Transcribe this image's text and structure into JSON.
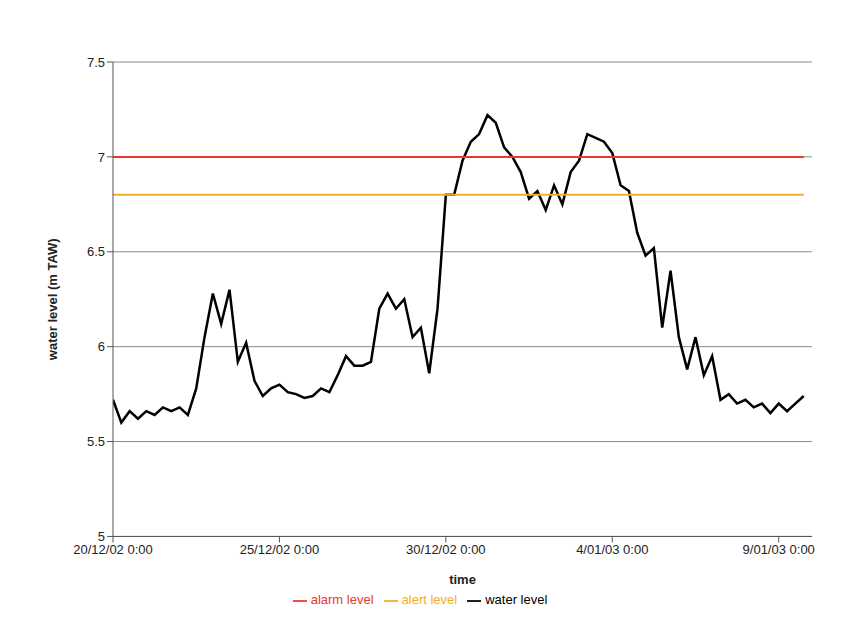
{
  "chart_data": {
    "type": "line",
    "x_label": "time",
    "y_label": "water level (m TAW)",
    "x": [
      0,
      0.25,
      0.5,
      0.75,
      1,
      1.25,
      1.5,
      1.75,
      2,
      2.25,
      2.5,
      2.75,
      3,
      3.25,
      3.5,
      3.75,
      4,
      4.25,
      4.5,
      4.75,
      5,
      5.25,
      5.5,
      5.75,
      6,
      6.25,
      6.5,
      6.75,
      7,
      7.25,
      7.5,
      7.75,
      8,
      8.25,
      8.5,
      8.75,
      9,
      9.25,
      9.5,
      9.75,
      10,
      10.25,
      10.5,
      10.75,
      11,
      11.25,
      11.5,
      11.75,
      12,
      12.25,
      12.5,
      12.75,
      13,
      13.25,
      13.5,
      13.75,
      14,
      14.25,
      14.5,
      14.75,
      15,
      15.25,
      15.5,
      15.75,
      16,
      16.25,
      16.5,
      16.75,
      17,
      17.25,
      17.5,
      17.75,
      18,
      18.25,
      18.5,
      18.75,
      19,
      19.25,
      19.5,
      19.75,
      20,
      20.25,
      20.5,
      20.75
    ],
    "series": [
      {
        "name": "water level",
        "color": "#000000",
        "values": [
          5.72,
          5.6,
          5.66,
          5.62,
          5.66,
          5.64,
          5.68,
          5.66,
          5.68,
          5.64,
          5.78,
          6.05,
          6.28,
          6.12,
          6.3,
          5.92,
          6.02,
          5.82,
          5.74,
          5.78,
          5.8,
          5.76,
          5.75,
          5.73,
          5.74,
          5.78,
          5.76,
          5.85,
          5.95,
          5.9,
          5.9,
          5.92,
          6.2,
          6.28,
          6.2,
          6.25,
          6.05,
          6.1,
          5.86,
          6.2,
          6.8,
          6.8,
          6.98,
          7.08,
          7.12,
          7.22,
          7.18,
          7.05,
          7.0,
          6.92,
          6.78,
          6.82,
          6.72,
          6.85,
          6.75,
          6.92,
          6.98,
          7.12,
          7.1,
          7.08,
          7.02,
          6.85,
          6.82,
          6.6,
          6.48,
          6.52,
          6.1,
          6.4,
          6.05,
          5.88,
          6.05,
          5.85,
          5.95,
          5.72,
          5.75,
          5.7,
          5.72,
          5.68,
          5.7,
          5.65,
          5.7,
          5.66,
          5.7,
          5.74
        ]
      },
      {
        "name": "alert level",
        "color": "#f0b020",
        "values": [
          6.8,
          6.8,
          6.8,
          6.8,
          6.8,
          6.8,
          6.8,
          6.8,
          6.8,
          6.8,
          6.8,
          6.8,
          6.8,
          6.8,
          6.8,
          6.8,
          6.8,
          6.8,
          6.8,
          6.8,
          6.8,
          6.8,
          6.8,
          6.8,
          6.8,
          6.8,
          6.8,
          6.8,
          6.8,
          6.8,
          6.8,
          6.8,
          6.8,
          6.8,
          6.8,
          6.8,
          6.8,
          6.8,
          6.8,
          6.8,
          6.8,
          6.8,
          6.8,
          6.8,
          6.8,
          6.8,
          6.8,
          6.8,
          6.8,
          6.8,
          6.8,
          6.8,
          6.8,
          6.8,
          6.8,
          6.8,
          6.8,
          6.8,
          6.8,
          6.8,
          6.8,
          6.8,
          6.8,
          6.8,
          6.8,
          6.8,
          6.8,
          6.8,
          6.8,
          6.8,
          6.8,
          6.8,
          6.8,
          6.8,
          6.8,
          6.8,
          6.8,
          6.8,
          6.8,
          6.8,
          6.8,
          6.8,
          6.8,
          6.8
        ]
      },
      {
        "name": "alarm level",
        "color": "#e8392a",
        "values": [
          7,
          7,
          7,
          7,
          7,
          7,
          7,
          7,
          7,
          7,
          7,
          7,
          7,
          7,
          7,
          7,
          7,
          7,
          7,
          7,
          7,
          7,
          7,
          7,
          7,
          7,
          7,
          7,
          7,
          7,
          7,
          7,
          7,
          7,
          7,
          7,
          7,
          7,
          7,
          7,
          7,
          7,
          7,
          7,
          7,
          7,
          7,
          7,
          7,
          7,
          7,
          7,
          7,
          7,
          7,
          7,
          7,
          7,
          7,
          7,
          7,
          7,
          7,
          7,
          7,
          7,
          7,
          7,
          7,
          7,
          7,
          7,
          7,
          7,
          7,
          7,
          7,
          7,
          7,
          7,
          7,
          7,
          7,
          7
        ]
      }
    ],
    "xlim": [
      0,
      21
    ],
    "xticks": [
      {
        "value": 0,
        "label": "20/12/02 0:00"
      },
      {
        "value": 5,
        "label": "25/12/02 0:00"
      },
      {
        "value": 10,
        "label": "30/12/02 0:00"
      },
      {
        "value": 15,
        "label": "4/01/03 0:00"
      },
      {
        "value": 20,
        "label": "9/01/03 0:00"
      }
    ],
    "ylim": [
      5,
      7.5
    ],
    "yticks": [
      5,
      5.5,
      6,
      6.5,
      7,
      7.5
    ],
    "grid": true,
    "legend": "bottom"
  }
}
